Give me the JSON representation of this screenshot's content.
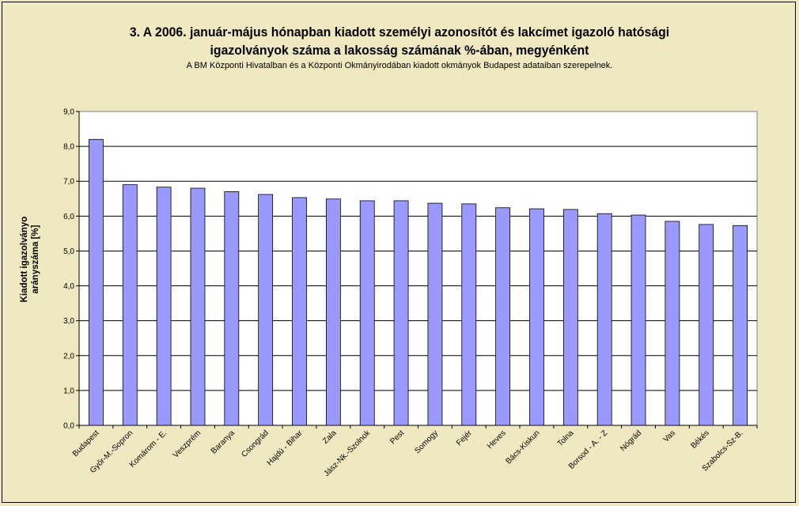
{
  "chart_data": {
    "type": "bar",
    "title_line1": "3. A 2006. január-május hónapban kiadott személyi azonosítót és lakcímet igazoló hatósági",
    "title_line2": "igazolványok száma a lakosság  számának %-ában, megyénként",
    "subtitle": "A BM Központi Hivatalban és a Központi Okmányirodában kiadott okmányok Budapest adataiban szerepelnek.",
    "ylabel_line1": "Kiadott igazolványo",
    "ylabel_line2": "arányszáma [%]",
    "xlabel": "",
    "ylim": [
      0,
      9
    ],
    "ytick_step": 1,
    "ytick_labels": [
      "0,0",
      "1,0",
      "2,0",
      "3,0",
      "4,0",
      "5,0",
      "6,0",
      "7,0",
      "8,0",
      "9,0"
    ],
    "grid": true,
    "legend": "none",
    "bar_color": "#9999ff",
    "categories": [
      "Budapest",
      "Győr-M.-Sopron",
      "Komárom - E.",
      "Veszprém",
      "Baranya",
      "Csongrád",
      "Hajdú - Bihar",
      "Zala",
      "Jász-Nk.-Szolnok",
      "Pest",
      "Somogy",
      "Fejér",
      "Heves",
      "Bács-Kiskun",
      "Tolna",
      "Borsod - A. - Z",
      "Nógrád",
      "Vas",
      "Békés",
      "Szabolcs-Sz-B."
    ],
    "values": [
      8.2,
      6.9,
      6.83,
      6.8,
      6.7,
      6.62,
      6.53,
      6.49,
      6.44,
      6.44,
      6.37,
      6.35,
      6.24,
      6.21,
      6.19,
      6.07,
      6.03,
      5.85,
      5.76,
      5.73
    ]
  }
}
